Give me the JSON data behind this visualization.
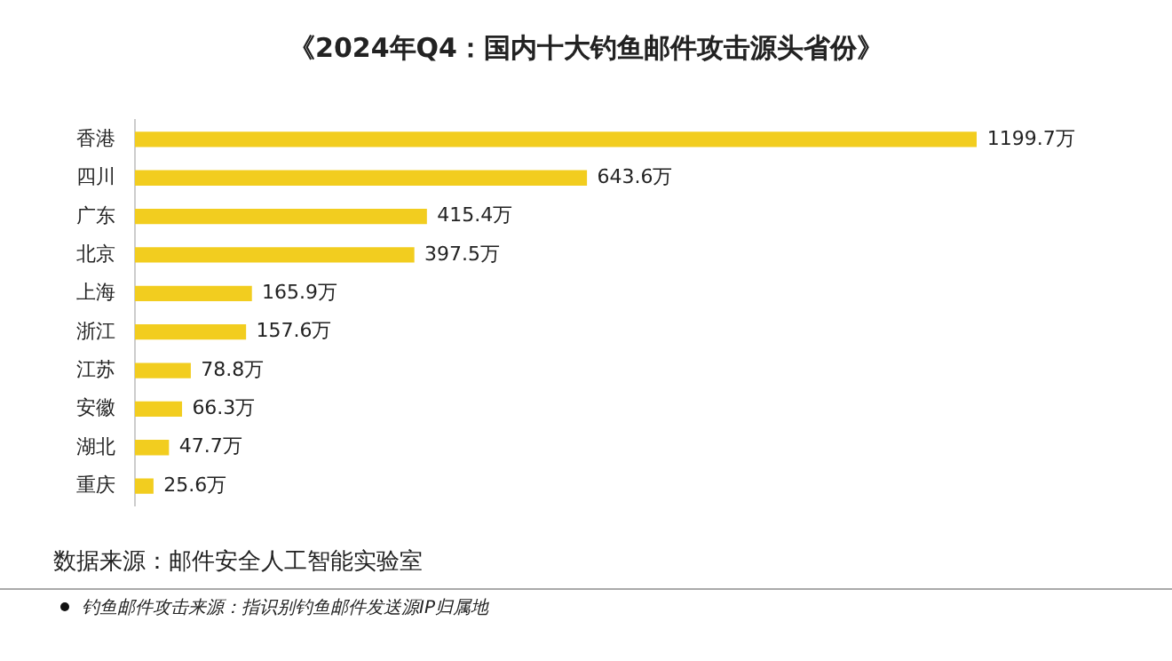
{
  "chart_data": {
    "type": "bar",
    "orientation": "horizontal",
    "title": "《2024年Q4：国内十大钓鱼邮件攻击源头省份》",
    "categories": [
      "香港",
      "四川",
      "广东",
      "北京",
      "上海",
      "浙江",
      "江苏",
      "安徽",
      "湖北",
      "重庆"
    ],
    "values": [
      1199.7,
      643.6,
      415.4,
      397.5,
      165.9,
      157.6,
      78.8,
      66.3,
      47.7,
      25.6
    ],
    "value_labels": [
      "1199.7万",
      "643.6万",
      "415.4万",
      "397.5万",
      "165.9万",
      "157.6万",
      "78.8万",
      "66.3万",
      "47.7万",
      "25.6万"
    ],
    "color": "#f2cd1f",
    "tick_labels": "y",
    "legend": false,
    "annotations": [
      "数据来源：邮件安全人工智能实验室",
      "钓鱼邮件攻击来源：指识别钓鱼邮件发送源IP归属地"
    ]
  }
}
